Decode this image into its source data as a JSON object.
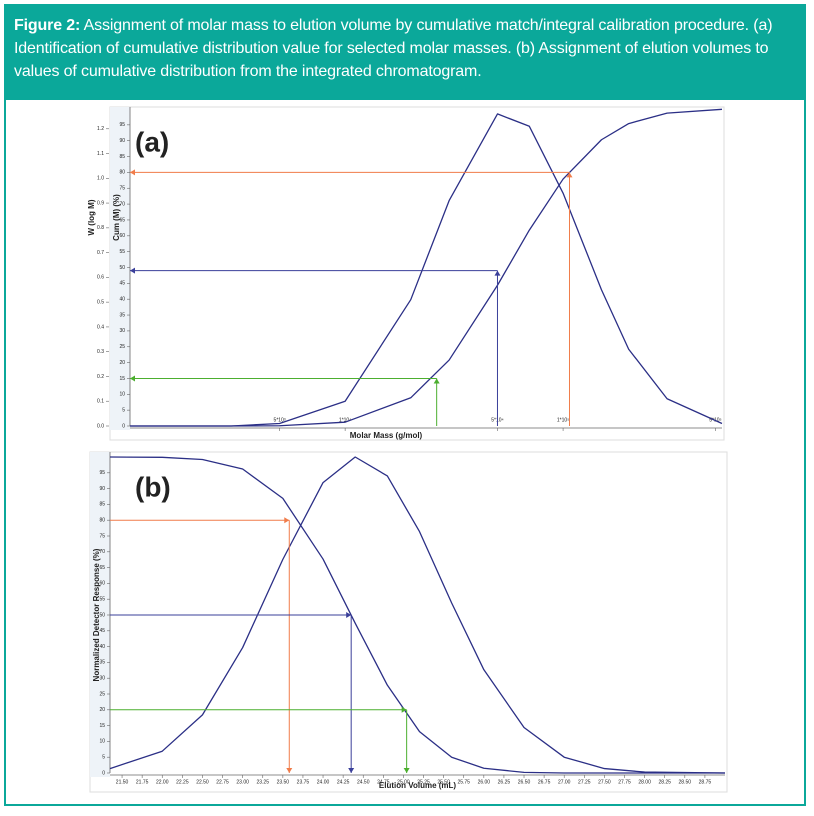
{
  "caption": {
    "label": "Figure 2:",
    "text": "Assignment of molar mass to elution volume by cumulative match/integral calibration procedure. (a) Identification of cumulative distribution value for selected molar masses. (b) Assignment of elution volumes to values of cumulative distribution from the integrated chromatogram."
  },
  "chart_data": [
    {
      "type": "line",
      "panel_label": "(a)",
      "x_label": "Molar Mass (g/mol)",
      "y_label": "Cum (M) (%)",
      "y2_label": "W (log M)",
      "xscale": "log",
      "xlim": [
        1030,
        536000
      ],
      "xticks": [
        {
          "value": 5000,
          "label": "5*10³"
        },
        {
          "value": 10000,
          "label": "1*10⁴"
        },
        {
          "value": 50000,
          "label": "5*10⁴"
        },
        {
          "value": 100000,
          "label": "1*10⁵"
        },
        {
          "value": 500000,
          "label": "5*10⁵"
        }
      ],
      "ylim": [
        0,
        100
      ],
      "yticks": [
        0,
        5,
        10,
        15,
        20,
        25,
        30,
        35,
        40,
        45,
        50,
        55,
        60,
        65,
        70,
        75,
        80,
        85,
        90,
        95
      ],
      "y2lim": [
        0,
        1.3
      ],
      "y2ticks": [
        {
          "value": 0,
          "label": "0.0"
        },
        0.1,
        0.2,
        0.3,
        0.4,
        0.5,
        0.6,
        0.7,
        0.8,
        0.9,
        {
          "value": 1,
          "label": "1.0"
        },
        1.1,
        1.2
      ],
      "series": [
        {
          "color": "#2b2f86",
          "axis": "y2",
          "x": [
            1030,
            3000,
            5000,
            10000,
            20000,
            30000,
            50000,
            70000,
            100000,
            150000,
            200000,
            300000,
            536000
          ],
          "values": [
            0,
            0,
            0.01,
            0.1,
            0.51,
            0.91,
            1.26,
            1.21,
            0.94,
            0.55,
            0.31,
            0.11,
            0.01
          ]
        },
        {
          "color": "#2b2f86",
          "x": [
            1030,
            3000,
            5000,
            10000,
            20000,
            30000,
            50000,
            70000,
            100000,
            150000,
            200000,
            300000,
            536000
          ],
          "values": [
            0,
            0,
            0.08,
            1.2,
            8.9,
            20.8,
            44.4,
            61.8,
            77.9,
            90.3,
            95.4,
            98.7,
            99.9
          ]
        }
      ],
      "reference_lines": [
        {
          "x": 107000,
          "y": 80,
          "color": "#f07c4a"
        },
        {
          "x": 50000,
          "y": 49,
          "color": "#3a3f9a"
        },
        {
          "x": 26300,
          "y": 15,
          "color": "#4caf2f"
        }
      ]
    },
    {
      "type": "line",
      "panel_label": "(b)",
      "x_label": "Elution Volume (mL)",
      "y_label": "Normalized Detector Response (%)",
      "xlim": [
        21.35,
        29.0
      ],
      "xticks": [
        {
          "value": 21.5,
          "label": "21.50"
        },
        {
          "value": 21.75,
          "label": "21.75"
        },
        {
          "value": 22,
          "label": "22.00"
        },
        {
          "value": 22.25,
          "label": "22.25"
        },
        {
          "value": 22.5,
          "label": "22.50"
        },
        {
          "value": 22.75,
          "label": "22.75"
        },
        {
          "value": 23,
          "label": "23.00"
        },
        {
          "value": 23.25,
          "label": "23.25"
        },
        {
          "value": 23.5,
          "label": "23.50"
        },
        {
          "value": 23.75,
          "label": "23.75"
        },
        {
          "value": 24,
          "label": "24.00"
        },
        {
          "value": 24.25,
          "label": "24.25"
        },
        {
          "value": 24.5,
          "label": "24.50"
        },
        {
          "value": 24.75,
          "label": "24.75"
        },
        {
          "value": 25,
          "label": "25.00"
        },
        {
          "value": 25.25,
          "label": "25.25"
        },
        {
          "value": 25.5,
          "label": "25.50"
        },
        {
          "value": 25.75,
          "label": "25.75"
        },
        {
          "value": 26,
          "label": "26.00"
        },
        {
          "value": 26.25,
          "label": "26.25"
        },
        {
          "value": 26.5,
          "label": "26.50"
        },
        {
          "value": 26.75,
          "label": "26.75"
        },
        {
          "value": 27,
          "label": "27.00"
        },
        {
          "value": 27.25,
          "label": "27.25"
        },
        {
          "value": 27.5,
          "label": "27.50"
        },
        {
          "value": 27.75,
          "label": "27.75"
        },
        {
          "value": 28,
          "label": "28.00"
        },
        {
          "value": 28.25,
          "label": "28.25"
        },
        {
          "value": 28.5,
          "label": "28.50"
        },
        {
          "value": 28.75,
          "label": "28.75"
        }
      ],
      "ylim": [
        0,
        100
      ],
      "yticks": [
        0,
        5,
        10,
        15,
        20,
        25,
        30,
        35,
        40,
        45,
        50,
        55,
        60,
        65,
        70,
        75,
        80,
        85,
        90,
        95
      ],
      "series": [
        {
          "color": "#2b2f86",
          "x": [
            21.35,
            22,
            22.5,
            23,
            23.5,
            24,
            24.4,
            24.8,
            25.2,
            25.6,
            26,
            26.5,
            27,
            27.5,
            28,
            29
          ],
          "values": [
            1.4,
            6.9,
            18.4,
            39.7,
            67.6,
            91.9,
            100,
            94.0,
            76.4,
            53.8,
            32.7,
            14.4,
            5.0,
            1.4,
            0.3,
            0
          ]
        },
        {
          "color": "#2b2f86",
          "x": [
            21.35,
            22,
            22.5,
            23,
            23.5,
            24,
            24.4,
            24.8,
            25.2,
            25.6,
            26,
            26.5,
            27,
            27.5,
            28,
            29
          ],
          "values": [
            100,
            99.9,
            99.2,
            96.2,
            86.9,
            67.7,
            47.4,
            27.8,
            13.1,
            5.0,
            1.5,
            0.2,
            0,
            0,
            0,
            0
          ]
        }
      ],
      "reference_lines": [
        {
          "x": 23.58,
          "y": 80,
          "color": "#f07c4a"
        },
        {
          "x": 24.35,
          "y": 50,
          "color": "#3a3f9a"
        },
        {
          "x": 25.04,
          "y": 20,
          "color": "#4caf2f"
        }
      ]
    }
  ]
}
